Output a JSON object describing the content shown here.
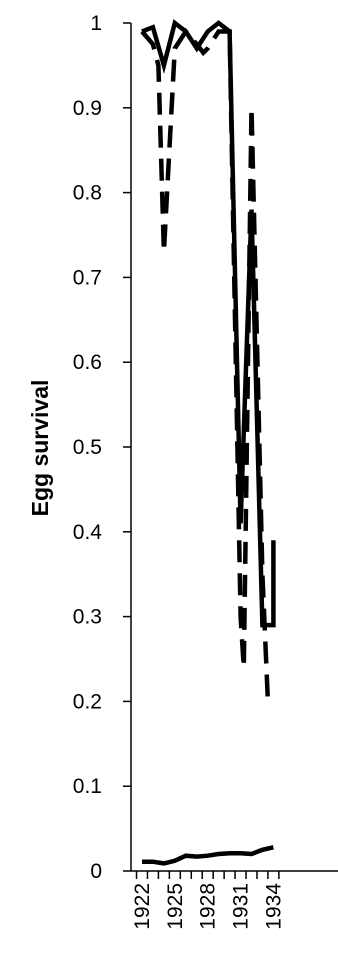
{
  "chart_data": {
    "type": "line",
    "title": "",
    "xlabel": "",
    "ylabel": "Egg survival",
    "xlim": [
      1922,
      1934
    ],
    "ylim": [
      0,
      1
    ],
    "y_ticks": [
      "0",
      "0.1",
      "0.2",
      "0.3",
      "0.4",
      "0.5",
      "0.6",
      "0.7",
      "0.8",
      "0.9",
      "1"
    ],
    "x_ticks": [
      "1922",
      "1925",
      "1928",
      "1931",
      "1934"
    ],
    "grid": false,
    "legend": "none",
    "series": [
      {
        "style": "solid",
        "x": [
          1922,
          1923,
          1924,
          1925,
          1926,
          1927,
          1928,
          1929,
          1930,
          1931,
          1932,
          1933,
          1934,
          1934
        ],
        "y": [
          0.99,
          0.995,
          0.95,
          1.0,
          0.99,
          0.97,
          0.99,
          1.0,
          0.99,
          0.41,
          0.78,
          0.29,
          0.29,
          0.39
        ]
      },
      {
        "style": "dashed",
        "x": [
          1922,
          1923,
          1923.5,
          1924,
          1925,
          1926,
          1927,
          1927.6,
          1928,
          1929,
          1930,
          1931,
          1931.3,
          1932,
          1933,
          1933.5,
          1934
        ],
        "y": [
          0.99,
          0.975,
          0.95,
          0.73,
          0.97,
          0.99,
          0.975,
          0.965,
          0.97,
          0.99,
          0.99,
          0.3,
          0.24,
          0.9,
          0.35,
          0.2,
          0.2
        ]
      },
      {
        "style": "solid",
        "x": [
          1922,
          1923,
          1924,
          1925,
          1926,
          1927,
          1928,
          1929,
          1930,
          1931,
          1932,
          1933,
          1934
        ],
        "y": [
          0.011,
          0.011,
          0.009,
          0.012,
          0.018,
          0.017,
          0.018,
          0.02,
          0.021,
          0.021,
          0.02,
          0.025,
          0.028
        ]
      }
    ]
  }
}
